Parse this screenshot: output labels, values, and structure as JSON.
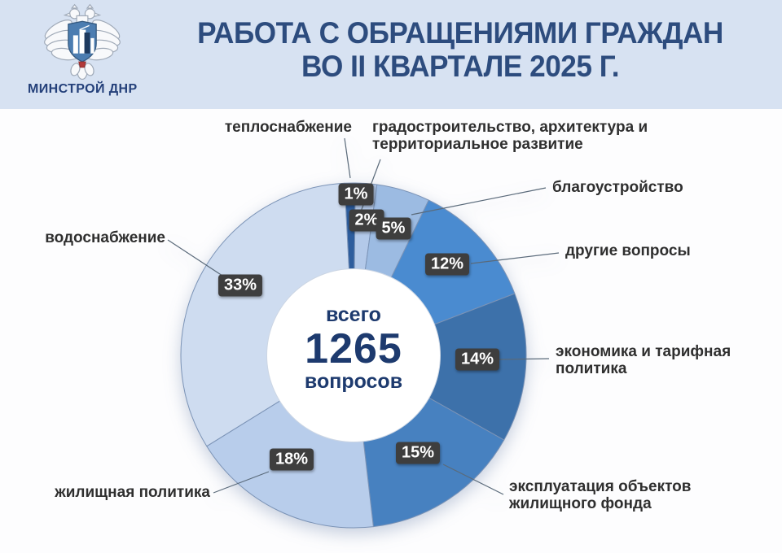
{
  "header": {
    "org_name": "МИНСТРОЙ ДНР",
    "title": "РАБОТА С ОБРАЩЕНИЯМИ ГРАЖДАН ВО II КВАРТАЛЕ 2025 Г.",
    "title_lines": [
      "РАБОТА С ОБРАЩЕНИЯМИ ГРАЖДАН",
      "ВО II КВАРТАЛЕ 2025 Г."
    ],
    "background_color": "#d7e2f2",
    "title_color": "#2d4c7e"
  },
  "chart_data": {
    "type": "pie",
    "subtype": "donut",
    "title": "РАБОТА С ОБРАЩЕНИЯМИ ГРАЖДАН ВО II КВАРТАЛЕ 2025 Г.",
    "unit": "%",
    "direction": "clockwise",
    "start_angle_deg": -3,
    "center": {
      "label_top": "всего",
      "value": "1265",
      "label_bottom": "вопросов",
      "total": 1265
    },
    "segments": [
      {
        "label": "теплоснабжение",
        "percent": 1,
        "color": "#2d5d9d"
      },
      {
        "label": "градостроительство, архитектура и территориальное развитие",
        "percent": 2,
        "color": "#b3c9e9"
      },
      {
        "label": "благоустройство",
        "percent": 5,
        "color": "#9cbbe2"
      },
      {
        "label": "другие вопросы",
        "percent": 12,
        "color": "#4a8bd0"
      },
      {
        "label": "экономика и тарифная политика",
        "percent": 14,
        "color": "#3d71aa"
      },
      {
        "label": "эксплуатация объектов жилищного фонда",
        "percent": 15,
        "color": "#4781c0"
      },
      {
        "label": "жилищная политика",
        "percent": 18,
        "color": "#b8cdeb"
      },
      {
        "label": "водоснабжение",
        "percent": 33,
        "color": "#cedcf0"
      }
    ],
    "styles": {
      "badge_background": "#3e3e3e",
      "badge_text": "#ffffff",
      "label_color": "#2f2f2f",
      "callout_line_color": "#5a6a7a",
      "slice_stroke": "#7b93b6",
      "center_text_color": "#1d3a6e"
    }
  }
}
